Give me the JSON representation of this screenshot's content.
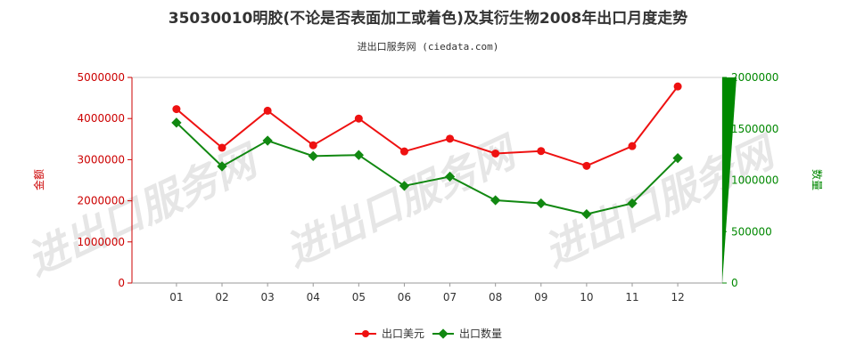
{
  "chart_data": {
    "type": "line",
    "title": "35030010明胶(不论是否表面加工或着色)及其衍生物2008年出口月度走势",
    "subtitle": "进出口服务网 (ciedata.com)",
    "watermark": "进出口服务网",
    "categories": [
      "01",
      "02",
      "03",
      "04",
      "05",
      "06",
      "07",
      "08",
      "09",
      "10",
      "11",
      "12"
    ],
    "y_left": {
      "label": "金额",
      "ylim": [
        0,
        5000000
      ],
      "ticks": [
        "0",
        "1000000",
        "2000000",
        "3000000",
        "4000000",
        "5000000"
      ],
      "color": "#cc0000"
    },
    "y_right": {
      "label": "数量",
      "ylim": [
        0,
        2000000
      ],
      "ticks": [
        "0",
        "500000",
        "1000000",
        "1500000",
        "2000000"
      ],
      "color": "#008800"
    },
    "series": [
      {
        "name": "出口美元",
        "axis": "left",
        "color": "#ee1111",
        "values": [
          4230000,
          3290000,
          4190000,
          3350000,
          4000000,
          3200000,
          3510000,
          3150000,
          3210000,
          2850000,
          3330000,
          4780000
        ]
      },
      {
        "name": "出口数量",
        "axis": "right",
        "color": "#118811",
        "values": [
          1560000,
          1135000,
          1385000,
          1235000,
          1245000,
          945000,
          1035000,
          805000,
          775000,
          670000,
          775000,
          1215000
        ]
      }
    ],
    "grid": false,
    "legend_position": "bottom-center"
  }
}
